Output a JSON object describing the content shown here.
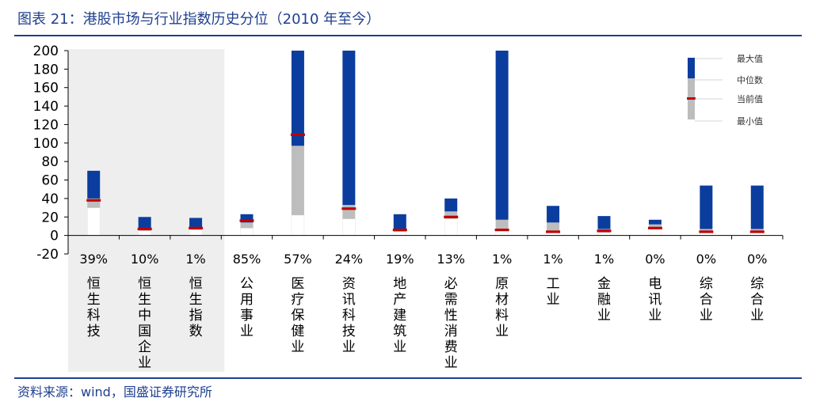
{
  "header": {
    "title": "图表 21：港股市场与行业指数历史分位（2010 年至今）"
  },
  "footer": {
    "source": "资料来源：wind，国盛证券研究所"
  },
  "chart_data": {
    "type": "bar",
    "subtype": "floating-range (min / median / max with current marker)",
    "ylim": [
      -20,
      200
    ],
    "yticks": [
      -20,
      0,
      20,
      40,
      60,
      80,
      100,
      120,
      140,
      160,
      180,
      200
    ],
    "grid": false,
    "legend_position": "top-right",
    "legend": [
      {
        "name": "最大值",
        "color": "#0b3d9e"
      },
      {
        "name": "中位数",
        "color": "#bdbdbd"
      },
      {
        "name": "当前值",
        "color": "#c00000"
      },
      {
        "name": "最小值",
        "color": "#ffffff"
      }
    ],
    "highlight_categories": [
      0,
      1,
      2
    ],
    "highlight_color": "#eeeeee",
    "categories": [
      {
        "name": "恒生科技",
        "percentile": "39%",
        "min": 30,
        "median": 40,
        "max": 70,
        "current": 38
      },
      {
        "name": "恒生中国企业",
        "percentile": "10%",
        "min": 5,
        "median": 8,
        "max": 20,
        "current": 7
      },
      {
        "name": "恒生指数",
        "percentile": "1%",
        "min": 6,
        "median": 9,
        "max": 19,
        "current": 8
      },
      {
        "name": "公用事业",
        "percentile": "85%",
        "min": 8,
        "median": 14,
        "max": 23,
        "current": 16
      },
      {
        "name": "医疗保健业",
        "percentile": "57%",
        "min": 22,
        "median": 97,
        "max": 200,
        "current": 109
      },
      {
        "name": "资讯科技业",
        "percentile": "24%",
        "min": 18,
        "median": 33,
        "max": 200,
        "current": 29
      },
      {
        "name": "地产建筑业",
        "percentile": "19%",
        "min": 4,
        "median": 7,
        "max": 23,
        "current": 6
      },
      {
        "name": "必需性消费业",
        "percentile": "13%",
        "min": 18,
        "median": 26,
        "max": 40,
        "current": 20
      },
      {
        "name": "原材料业",
        "percentile": "1%",
        "min": 5,
        "median": 17,
        "max": 200,
        "current": 6
      },
      {
        "name": "工业",
        "percentile": "1%",
        "min": 3,
        "median": 14,
        "max": 32,
        "current": 4
      },
      {
        "name": "金融业",
        "percentile": "1%",
        "min": 3,
        "median": 7,
        "max": 21,
        "current": 5
      },
      {
        "name": "电讯业",
        "percentile": "0%",
        "min": 7,
        "median": 12,
        "max": 17,
        "current": 8
      },
      {
        "name": "综合业",
        "percentile": "0%",
        "min": 3,
        "median": 7,
        "max": 54,
        "current": 4
      },
      {
        "name": "综合业",
        "percentile": "0%",
        "min": 3,
        "median": 7,
        "max": 54,
        "current": 4
      }
    ]
  }
}
